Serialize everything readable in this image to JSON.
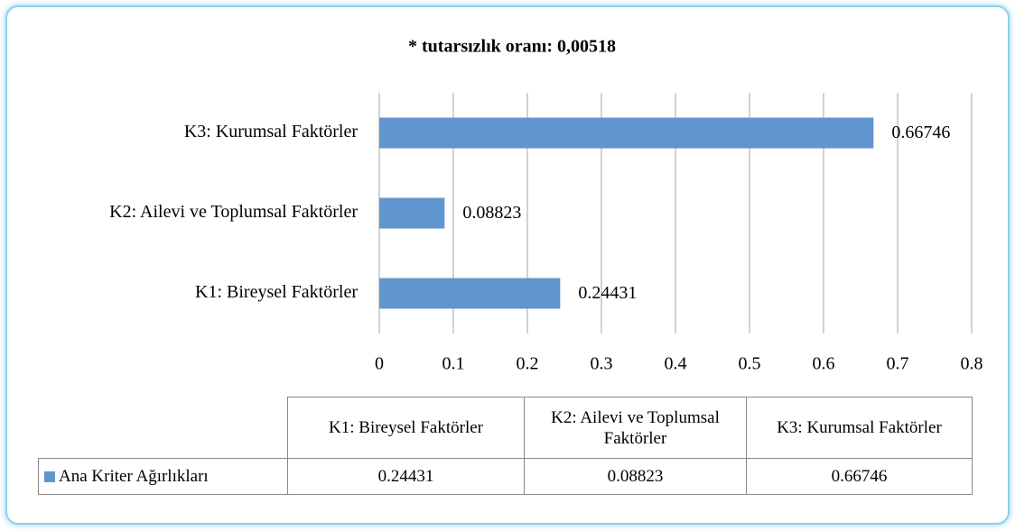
{
  "chart_data": {
    "type": "barh",
    "title": "* tutarsızlık oranı: 0,00518",
    "categories": [
      "K1: Bireysel Faktörler",
      "K2: Ailevi ve Toplumsal Faktörler",
      "K3: Kurumsal Faktörler"
    ],
    "series": [
      {
        "name": "Ana Kriter Ağırlıkları",
        "color": "#6096cd",
        "values": [
          0.24431,
          0.08823,
          0.66746
        ]
      }
    ],
    "xlim": [
      0,
      0.8
    ],
    "xticks": [
      0,
      0.1,
      0.2,
      0.3,
      0.4,
      0.5,
      0.6,
      0.7,
      0.8
    ],
    "grid": true,
    "data_table": true
  }
}
